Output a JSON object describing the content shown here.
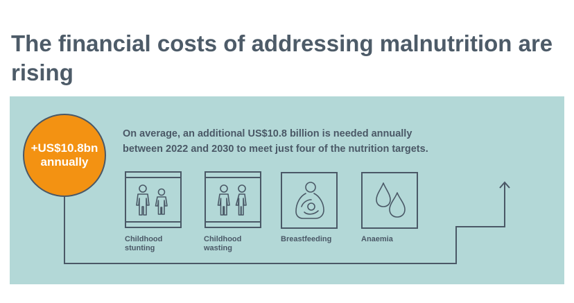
{
  "title": "The financial costs of addressing malnutrition are rising",
  "badge": {
    "line1": "+US$10.8bn",
    "line2": "annually",
    "color": "#f39212"
  },
  "description": {
    "line1": "On average, an additional US$10.8 billion is needed annually",
    "line2": "between 2022 and 2030 to meet just four of the nutrition targets."
  },
  "targets": [
    {
      "label_line1": "Childhood",
      "label_line2": "stunting",
      "icon": "children-stunting-icon"
    },
    {
      "label_line1": "Childhood",
      "label_line2": "wasting",
      "icon": "children-wasting-icon"
    },
    {
      "label_line1": "Breastfeeding",
      "label_line2": "",
      "icon": "breastfeeding-icon"
    },
    {
      "label_line1": "Anaemia",
      "label_line2": "",
      "icon": "blood-drops-icon"
    }
  ],
  "colors": {
    "panel": "#b3d8d7",
    "line": "#4a5866",
    "text": "#4a5866"
  }
}
